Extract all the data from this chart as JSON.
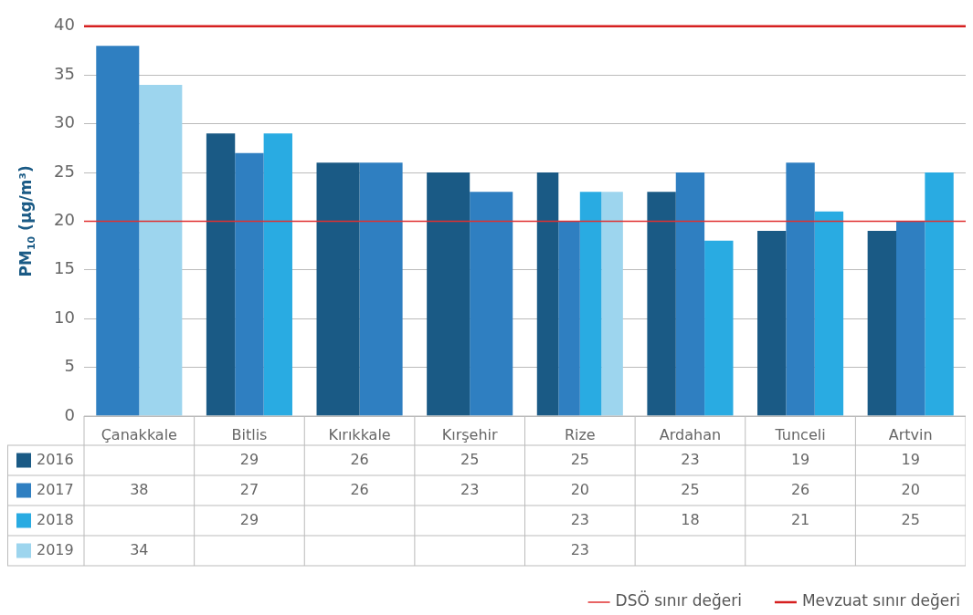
{
  "chart_data": {
    "type": "bar",
    "ylabel": "PM$_{10}$ (µg/m³)",
    "categories": [
      "Çanakkale",
      "Bitlis",
      "Kırıkkale",
      "Kırşehir",
      "Rize",
      "Ardahan",
      "Tunceli",
      "Artvin"
    ],
    "series": [
      {
        "name": "2016",
        "color": "#1a5a85",
        "values": [
          null,
          29,
          26,
          25,
          25,
          23,
          19,
          19
        ]
      },
      {
        "name": "2017",
        "color": "#2f7fc1",
        "values": [
          38,
          27,
          26,
          23,
          20,
          25,
          26,
          20
        ]
      },
      {
        "name": "2018",
        "color": "#29abe2",
        "values": [
          null,
          29,
          null,
          null,
          23,
          18,
          21,
          25
        ]
      },
      {
        "name": "2019",
        "color": "#9dd5ee",
        "values": [
          34,
          null,
          null,
          null,
          23,
          null,
          null,
          null
        ]
      }
    ],
    "ylim": [
      0,
      40
    ],
    "yticks": [
      0,
      5,
      10,
      15,
      20,
      25,
      30,
      35,
      40
    ],
    "grid": "y",
    "data_labels": true,
    "legend": "bottom right",
    "ref_lines": [
      {
        "axis": "y",
        "value": 20,
        "label": "DSÖ sınır değeri",
        "color": "#e03030"
      },
      {
        "axis": "y",
        "value": 40,
        "label": "Mevzuat sınır değeri",
        "color": "#d62020"
      }
    ]
  }
}
